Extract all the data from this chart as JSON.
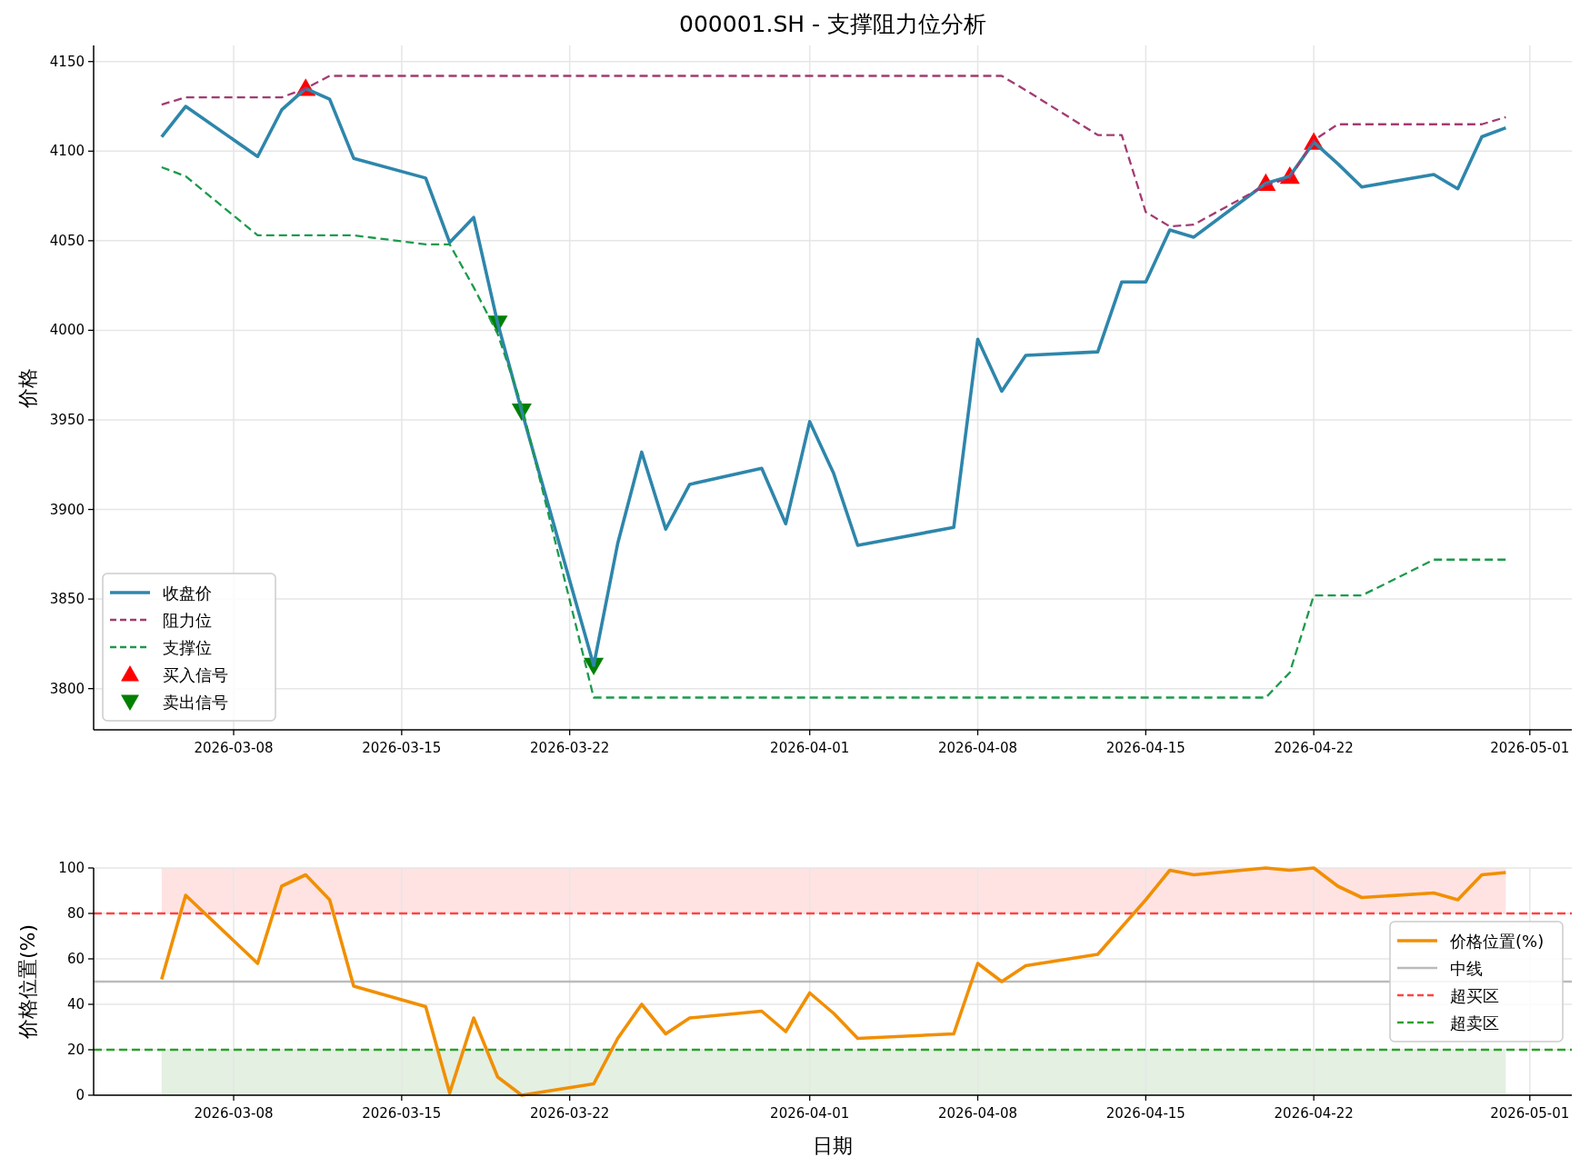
{
  "chart_data": [
    {
      "type": "line",
      "title": "000001.SH - 支撑阻力位分析",
      "ylabel": "价格",
      "x": [
        "2026-03-05",
        "2026-03-06",
        "2026-03-09",
        "2026-03-10",
        "2026-03-11",
        "2026-03-12",
        "2026-03-13",
        "2026-03-16",
        "2026-03-17",
        "2026-03-18",
        "2026-03-19",
        "2026-03-20",
        "2026-03-23",
        "2026-03-24",
        "2026-03-25",
        "2026-03-26",
        "2026-03-27",
        "2026-03-30",
        "2026-03-31",
        "2026-04-01",
        "2026-04-02",
        "2026-04-03",
        "2026-04-07",
        "2026-04-08",
        "2026-04-09",
        "2026-04-10",
        "2026-04-13",
        "2026-04-14",
        "2026-04-15",
        "2026-04-16",
        "2026-04-17",
        "2026-04-20",
        "2026-04-21",
        "2026-04-22",
        "2026-04-23",
        "2026-04-24",
        "2026-04-27",
        "2026-04-28",
        "2026-04-29",
        "2026-04-30"
      ],
      "series": [
        {
          "name": "收盘价",
          "color": "#2e86ab",
          "line_style": "solid",
          "values": [
            4108,
            4125,
            4097,
            4123,
            4135,
            4129,
            4096,
            4085,
            4049,
            4063,
            4004,
            3955,
            3813,
            3881,
            3932,
            3889,
            3914,
            3923,
            3892,
            3949,
            3920,
            3880,
            3890,
            3995,
            3966,
            3986,
            3988,
            4027,
            4027,
            4056,
            4052,
            4082,
            4086,
            4105,
            4093,
            4080,
            4087,
            4079,
            4108,
            4113
          ]
        },
        {
          "name": "阻力位",
          "color": "#a23b72",
          "line_style": "dashed",
          "values": [
            4126,
            4130,
            4130,
            4130,
            4135,
            4142,
            4142,
            4142,
            4142,
            4142,
            4142,
            4142,
            4142,
            4142,
            4142,
            4142,
            4142,
            4142,
            4142,
            4142,
            4142,
            4142,
            4142,
            4142,
            4142,
            4134,
            4109,
            4109,
            4066,
            4058,
            4059,
            4081,
            4085,
            4106,
            4115,
            4115,
            4115,
            4115,
            4115,
            4119
          ]
        },
        {
          "name": "支撑位",
          "color": "#1b9a4b",
          "line_style": "dashed",
          "values": [
            4091,
            4086,
            4053,
            4053,
            4053,
            4053,
            4053,
            4048,
            4048,
            4024,
            3998,
            3958,
            3795,
            3795,
            3795,
            3795,
            3795,
            3795,
            3795,
            3795,
            3795,
            3795,
            3795,
            3795,
            3795,
            3795,
            3795,
            3795,
            3795,
            3795,
            3795,
            3795,
            3809,
            3852,
            3852,
            3852,
            3872,
            3872,
            3872,
            3872
          ]
        },
        {
          "name": "买入信号",
          "type": "scatter",
          "marker": "triangle",
          "color": "#ff0000",
          "x": [
            "2026-03-11",
            "2026-04-20",
            "2026-04-21",
            "2026-04-22"
          ],
          "values": [
            4135,
            4082,
            4086,
            4105
          ]
        },
        {
          "name": "卖出信号",
          "type": "scatter",
          "marker": "triangle-down",
          "color": "#008000",
          "x": [
            "2026-03-19",
            "2026-03-20",
            "2026-03-23"
          ],
          "values": [
            4004,
            3955,
            3813
          ]
        }
      ],
      "xlim": [
        "2026-03-02T04:00",
        "2026-05-02T18:00"
      ],
      "xticks": [
        "2026-03-08",
        "2026-03-15",
        "2026-03-22",
        "2026-04-01",
        "2026-04-08",
        "2026-04-15",
        "2026-04-22",
        "2026-05-01"
      ],
      "ylim": [
        3777,
        4159
      ],
      "yticks": [
        3800,
        3850,
        3900,
        3950,
        4000,
        4050,
        4100,
        4150
      ],
      "grid": true,
      "legend": "bottom left"
    },
    {
      "type": "line",
      "xlabel": "日期",
      "ylabel": "价格位置(%)",
      "x": [
        "2026-03-05",
        "2026-03-06",
        "2026-03-09",
        "2026-03-10",
        "2026-03-11",
        "2026-03-12",
        "2026-03-13",
        "2026-03-16",
        "2026-03-17",
        "2026-03-18",
        "2026-03-19",
        "2026-03-20",
        "2026-03-23",
        "2026-03-24",
        "2026-03-25",
        "2026-03-26",
        "2026-03-27",
        "2026-03-30",
        "2026-03-31",
        "2026-04-01",
        "2026-04-02",
        "2026-04-03",
        "2026-04-07",
        "2026-04-08",
        "2026-04-09",
        "2026-04-10",
        "2026-04-13",
        "2026-04-14",
        "2026-04-15",
        "2026-04-16",
        "2026-04-17",
        "2026-04-20",
        "2026-04-21",
        "2026-04-22",
        "2026-04-23",
        "2026-04-24",
        "2026-04-27",
        "2026-04-28",
        "2026-04-29",
        "2026-04-30"
      ],
      "series": [
        {
          "name": "价格位置(%)",
          "color": "#f18f01",
          "line_style": "solid",
          "values": [
            51,
            88,
            58,
            92,
            97,
            86,
            48,
            39,
            1,
            34,
            8,
            0,
            5,
            25,
            40,
            27,
            34,
            37,
            28,
            45,
            36,
            25,
            27,
            58,
            50,
            57,
            62,
            74,
            86,
            99,
            97,
            100,
            99,
            100,
            92,
            87,
            89,
            86,
            97,
            98
          ]
        }
      ],
      "ref_lines": [
        {
          "axis": "y",
          "value": 50,
          "label": "中线",
          "color": "#bbbbbb",
          "line_style": "solid"
        },
        {
          "axis": "y",
          "value": 80,
          "label": "超买区",
          "color": "#ff4444",
          "line_style": "dashed"
        },
        {
          "axis": "y",
          "value": 20,
          "label": "超卖区",
          "color": "#2ca02c",
          "line_style": "dashed"
        }
      ],
      "bands": [
        {
          "axis": "y",
          "from": 80,
          "to": 100,
          "color": "#ffe3e3"
        },
        {
          "axis": "y",
          "from": 0,
          "to": 20,
          "color": "#e4f0e2"
        }
      ],
      "xlim": [
        "2026-03-02T04:00",
        "2026-05-02T18:00"
      ],
      "xticks": [
        "2026-03-08",
        "2026-03-15",
        "2026-03-22",
        "2026-04-01",
        "2026-04-08",
        "2026-04-15",
        "2026-04-22",
        "2026-05-01"
      ],
      "ylim": [
        0,
        100
      ],
      "yticks": [
        0,
        20,
        40,
        60,
        80,
        100
      ],
      "grid": true,
      "legend": "right"
    }
  ]
}
